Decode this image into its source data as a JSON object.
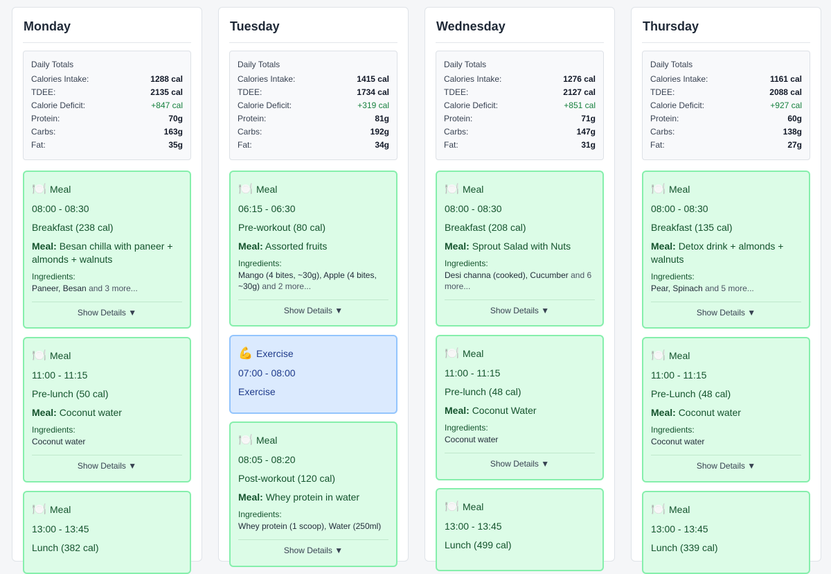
{
  "labels": {
    "daily_totals": "Daily Totals",
    "calories_intake": "Calories Intake:",
    "tdee": "TDEE:",
    "calorie_deficit": "Calorie Deficit:",
    "protein": "Protein:",
    "carbs": "Carbs:",
    "fat": "Fat:",
    "meal_prefix": "Meal:",
    "ingredients": "Ingredients:",
    "show_details": "Show Details ▼"
  },
  "icons": {
    "meal": "plate-cutlery-icon",
    "exercise": "flexed-biceps-icon"
  },
  "colors": {
    "meal_bg": "#dcfce7",
    "meal_border": "#86efac",
    "exercise_bg": "#dbeafe",
    "exercise_border": "#93c5fd",
    "deficit": "#15803d"
  },
  "days": [
    {
      "name": "Monday",
      "totals": {
        "calories_intake": "1288 cal",
        "tdee": "2135 cal",
        "calorie_deficit": "+847 cal",
        "protein": "70g",
        "carbs": "163g",
        "fat": "35g"
      },
      "cards": [
        {
          "type": "meal",
          "kind": "Meal",
          "time": "08:00 - 08:30",
          "title": "Breakfast (238 cal)",
          "meal": "Besan chilla with paneer + almonds + walnuts",
          "ingredients": "Paneer, Besan",
          "more": "and 3 more..."
        },
        {
          "type": "meal",
          "kind": "Meal",
          "time": "11:00 - 11:15",
          "title": "Pre-lunch (50 cal)",
          "meal": "Coconut water",
          "ingredients": "Coconut water",
          "more": ""
        },
        {
          "type": "meal",
          "kind": "Meal",
          "time": "13:00 - 13:45",
          "title": "Lunch (382 cal)",
          "meal": "",
          "ingredients": "",
          "more": ""
        }
      ]
    },
    {
      "name": "Tuesday",
      "totals": {
        "calories_intake": "1415 cal",
        "tdee": "1734 cal",
        "calorie_deficit": "+319 cal",
        "protein": "81g",
        "carbs": "192g",
        "fat": "34g"
      },
      "cards": [
        {
          "type": "meal",
          "kind": "Meal",
          "time": "06:15 - 06:30",
          "title": "Pre-workout (80 cal)",
          "meal": "Assorted fruits",
          "ingredients": "Mango (4 bites, ~30g), Apple (4 bites, ~30g)",
          "more": "and 2 more..."
        },
        {
          "type": "exercise",
          "kind": "Exercise",
          "time": "07:00 - 08:00",
          "title": "Exercise"
        },
        {
          "type": "meal",
          "kind": "Meal",
          "time": "08:05 - 08:20",
          "title": "Post-workout (120 cal)",
          "meal": "Whey protein in water",
          "ingredients": "Whey protein (1 scoop), Water (250ml)",
          "more": ""
        }
      ]
    },
    {
      "name": "Wednesday",
      "totals": {
        "calories_intake": "1276 cal",
        "tdee": "2127 cal",
        "calorie_deficit": "+851 cal",
        "protein": "71g",
        "carbs": "147g",
        "fat": "31g"
      },
      "cards": [
        {
          "type": "meal",
          "kind": "Meal",
          "time": "08:00 - 08:30",
          "title": "Breakfast (208 cal)",
          "meal": "Sprout Salad with Nuts",
          "ingredients": "Desi channa (cooked), Cucumber",
          "more": "and 6 more..."
        },
        {
          "type": "meal",
          "kind": "Meal",
          "time": "11:00 - 11:15",
          "title": "Pre-lunch (48 cal)",
          "meal": "Coconut Water",
          "ingredients": "Coconut water",
          "more": ""
        },
        {
          "type": "meal",
          "kind": "Meal",
          "time": "13:00 - 13:45",
          "title": "Lunch (499 cal)",
          "meal": "",
          "ingredients": "",
          "more": ""
        }
      ]
    },
    {
      "name": "Thursday",
      "totals": {
        "calories_intake": "1161 cal",
        "tdee": "2088 cal",
        "calorie_deficit": "+927 cal",
        "protein": "60g",
        "carbs": "138g",
        "fat": "27g"
      },
      "cards": [
        {
          "type": "meal",
          "kind": "Meal",
          "time": "08:00 - 08:30",
          "title": "Breakfast (135 cal)",
          "meal": "Detox drink + almonds + walnuts",
          "ingredients": "Pear, Spinach",
          "more": "and 5 more..."
        },
        {
          "type": "meal",
          "kind": "Meal",
          "time": "11:00 - 11:15",
          "title": "Pre-Lunch (48 cal)",
          "meal": "Coconut water",
          "ingredients": "Coconut water",
          "more": ""
        },
        {
          "type": "meal",
          "kind": "Meal",
          "time": "13:00 - 13:45",
          "title": "Lunch (339 cal)",
          "meal": "",
          "ingredients": "",
          "more": ""
        }
      ]
    }
  ]
}
